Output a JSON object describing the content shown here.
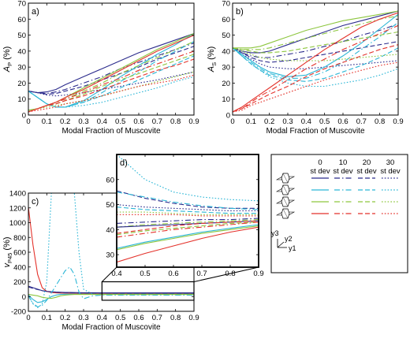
{
  "colors": {
    "navy": "#2b2b8c",
    "cyan": "#2bb6d6",
    "green": "#8dc63f",
    "red": "#e4322b"
  },
  "legend": {
    "headers": [
      {
        "a": "0",
        "b": "st dev"
      },
      {
        "a": "10",
        "b": "st dev"
      },
      {
        "a": "20",
        "b": "st dev"
      },
      {
        "a": "30",
        "b": "st dev"
      }
    ],
    "dashes": [
      "solid",
      "dashdot",
      "dash",
      "dot"
    ],
    "rows": [
      "navy",
      "cyan",
      "green",
      "red"
    ],
    "axes": {
      "y3": "y3",
      "y2": "y2",
      "y1": "y1"
    }
  },
  "chart_data": [
    {
      "id": "a",
      "type": "line",
      "panel_label": "a)",
      "ylabel": "Ap (%)",
      "ylabel_main": "A",
      "ylabel_sub": "P",
      "ylabel_unit": "(%)",
      "xlabel": "Modal Fraction of Muscovite",
      "xlim": [
        0,
        0.9
      ],
      "ylim": [
        0,
        70
      ],
      "xticks": [
        "0",
        "0.1",
        "0.2",
        "0.3",
        "0.4",
        "0.5",
        "0.6",
        "0.7",
        "0.8",
        "0.9"
      ],
      "yticks": [
        "0",
        "10",
        "20",
        "30",
        "40",
        "50",
        "60",
        "70"
      ],
      "x": [
        0,
        0.05,
        0.1,
        0.15,
        0.2,
        0.3,
        0.4,
        0.5,
        0.6,
        0.7,
        0.8,
        0.9
      ],
      "series": [
        {
          "color": "navy",
          "style": "solid",
          "values": [
            15,
            14,
            14.5,
            16,
            19,
            24,
            29,
            34,
            39,
            43,
            47,
            51
          ]
        },
        {
          "color": "navy",
          "style": "dashdot",
          "values": [
            15,
            14,
            13.5,
            14.5,
            16,
            20,
            24,
            29,
            33,
            37,
            41,
            45
          ]
        },
        {
          "color": "navy",
          "style": "dash",
          "values": [
            15,
            14,
            13,
            13.5,
            15,
            18,
            22,
            26,
            30,
            35,
            39,
            43
          ]
        },
        {
          "color": "navy",
          "style": "dot",
          "values": [
            15,
            14,
            12.5,
            12,
            12.5,
            14,
            16,
            18,
            20,
            22,
            24.5,
            27
          ]
        },
        {
          "color": "cyan",
          "style": "solid",
          "values": [
            15,
            11,
            7,
            5,
            5,
            9,
            16,
            24,
            31,
            38,
            44,
            51
          ]
        },
        {
          "color": "cyan",
          "style": "dashdot",
          "values": [
            15,
            11,
            7,
            5,
            5,
            8,
            14,
            21,
            27,
            34,
            40,
            46
          ]
        },
        {
          "color": "cyan",
          "style": "dash",
          "values": [
            15,
            11,
            7,
            5,
            5,
            8,
            12,
            17,
            22,
            27,
            32,
            37
          ]
        },
        {
          "color": "cyan",
          "style": "dot",
          "values": [
            15,
            11,
            7,
            5,
            5,
            6,
            8,
            11,
            14,
            17,
            21,
            24
          ]
        },
        {
          "color": "green",
          "style": "solid",
          "values": [
            3,
            4,
            6,
            8,
            11,
            17,
            23,
            29,
            35,
            41,
            46,
            51
          ]
        },
        {
          "color": "green",
          "style": "dashdot",
          "values": [
            3,
            4,
            6,
            8,
            10,
            15,
            20,
            26,
            31,
            36,
            41,
            46
          ]
        },
        {
          "color": "green",
          "style": "dash",
          "values": [
            3,
            4,
            6,
            7,
            9,
            13,
            18,
            22,
            26,
            30,
            34,
            38
          ]
        },
        {
          "color": "green",
          "style": "dot",
          "values": [
            3,
            4,
            5,
            6,
            7,
            9,
            12,
            15,
            18,
            21,
            24,
            27
          ]
        },
        {
          "color": "red",
          "style": "solid",
          "values": [
            2,
            4,
            6,
            8,
            11,
            16,
            22,
            28,
            34,
            40,
            45,
            50
          ]
        },
        {
          "color": "red",
          "style": "dashdot",
          "values": [
            2,
            4,
            6,
            8,
            10,
            14,
            19,
            23,
            28,
            32,
            36,
            40
          ]
        },
        {
          "color": "red",
          "style": "dash",
          "values": [
            2,
            4,
            6,
            7,
            9,
            12,
            16,
            20,
            24,
            28,
            31,
            35
          ]
        },
        {
          "color": "red",
          "style": "dot",
          "values": [
            2,
            3,
            4,
            5,
            7,
            9,
            12,
            15,
            18,
            20,
            22,
            25
          ]
        }
      ]
    },
    {
      "id": "b",
      "type": "line",
      "panel_label": "b)",
      "ylabel": "As (%)",
      "ylabel_main": "A",
      "ylabel_sub": "S",
      "ylabel_unit": "(%)",
      "xlabel": "Modal Fraction of Muscovite",
      "xlim": [
        0,
        0.9
      ],
      "ylim": [
        0,
        70
      ],
      "xticks": [
        "0",
        "0.1",
        "0.2",
        "0.3",
        "0.4",
        "0.5",
        "0.6",
        "0.7",
        "0.8",
        "0.9"
      ],
      "yticks": [
        "0",
        "10",
        "20",
        "30",
        "40",
        "50",
        "60",
        "70"
      ],
      "x": [
        0,
        0.05,
        0.1,
        0.15,
        0.2,
        0.3,
        0.4,
        0.5,
        0.6,
        0.7,
        0.8,
        0.9
      ],
      "series": [
        {
          "color": "navy",
          "style": "solid",
          "values": [
            42,
            40,
            39,
            39,
            40,
            44,
            48,
            52,
            56,
            59,
            62,
            65
          ]
        },
        {
          "color": "navy",
          "style": "dashdot",
          "values": [
            42,
            39,
            37,
            36,
            36,
            38,
            40,
            43,
            46,
            50,
            53,
            57
          ]
        },
        {
          "color": "navy",
          "style": "dash",
          "values": [
            42,
            39,
            36,
            34,
            33,
            34,
            36,
            38,
            40,
            42,
            44,
            46
          ]
        },
        {
          "color": "navy",
          "style": "dot",
          "values": [
            42,
            38,
            35,
            32,
            30,
            29,
            29,
            30,
            31,
            32,
            33,
            34
          ]
        },
        {
          "color": "cyan",
          "style": "solid",
          "values": [
            42,
            38,
            34,
            30,
            27,
            24,
            25,
            30,
            37,
            45,
            54,
            63
          ]
        },
        {
          "color": "cyan",
          "style": "dashdot",
          "values": [
            42,
            37,
            33,
            29,
            26,
            23,
            23,
            27,
            33,
            41,
            49,
            58
          ]
        },
        {
          "color": "cyan",
          "style": "dash",
          "values": [
            42,
            37,
            32,
            28,
            25,
            22,
            21,
            23,
            27,
            31,
            36,
            42
          ]
        },
        {
          "color": "cyan",
          "style": "dot",
          "values": [
            42,
            37,
            32,
            28,
            24,
            20,
            18,
            18,
            20,
            22,
            25,
            29
          ]
        },
        {
          "color": "green",
          "style": "solid",
          "values": [
            42,
            42,
            42,
            43,
            45,
            49,
            53,
            56,
            59,
            61,
            63,
            65
          ]
        },
        {
          "color": "green",
          "style": "dashdot",
          "values": [
            42,
            41,
            41,
            41,
            42,
            45,
            48,
            51,
            54,
            57,
            60,
            62
          ]
        },
        {
          "color": "green",
          "style": "dash",
          "values": [
            42,
            41,
            40,
            39,
            39,
            40,
            42,
            44,
            46,
            48,
            50,
            52
          ]
        },
        {
          "color": "green",
          "style": "dot",
          "values": [
            42,
            40,
            38,
            36,
            35,
            34,
            34,
            34,
            35,
            36,
            37,
            38
          ]
        },
        {
          "color": "red",
          "style": "solid",
          "values": [
            2,
            5,
            9,
            13,
            17,
            25,
            33,
            41,
            48,
            55,
            60,
            64
          ]
        },
        {
          "color": "red",
          "style": "dashdot",
          "values": [
            2,
            4,
            8,
            12,
            15,
            22,
            29,
            35,
            41,
            46,
            51,
            56
          ]
        },
        {
          "color": "red",
          "style": "dash",
          "values": [
            2,
            4,
            7,
            10,
            13,
            18,
            24,
            29,
            33,
            37,
            41,
            44
          ]
        },
        {
          "color": "red",
          "style": "dot",
          "values": [
            2,
            3,
            6,
            8,
            10,
            14,
            18,
            22,
            25,
            28,
            31,
            33
          ]
        }
      ]
    },
    {
      "id": "c",
      "type": "line",
      "panel_label": "c)",
      "ylabel": "vP45 (%)",
      "ylabel_main": "v",
      "ylabel_sub": "P45",
      "ylabel_unit": "(%)",
      "xlabel": "Modal Fraction of Muscovite",
      "xlim": [
        0,
        0.9
      ],
      "ylim": [
        -200,
        1400
      ],
      "xticks": [
        "0",
        "0.1",
        "0.2",
        "0.3",
        "0.4",
        "0.5",
        "0.6",
        "0.7",
        "0.8",
        "0.9"
      ],
      "yticks": [
        "-200",
        "0",
        "200",
        "400",
        "600",
        "800",
        "1000",
        "1200",
        "1400"
      ],
      "x": [
        0,
        0.025,
        0.05,
        0.075,
        0.1,
        0.125,
        0.15,
        0.175,
        0.2,
        0.225,
        0.25,
        0.275,
        0.3,
        0.35,
        0.4,
        0.5,
        0.6,
        0.7,
        0.8,
        0.9
      ],
      "series": [
        {
          "color": "red",
          "style": "solid",
          "values": [
            1210,
            700,
            300,
            120,
            70,
            55,
            50,
            48,
            46,
            45,
            44,
            43,
            42,
            41,
            40,
            40,
            40,
            40,
            40,
            40
          ]
        },
        {
          "color": "navy",
          "style": "solid",
          "values": [
            140,
            120,
            100,
            80,
            70,
            65,
            60,
            58,
            56,
            55,
            54,
            53,
            52,
            52,
            51,
            51,
            50,
            50,
            50,
            50
          ]
        },
        {
          "color": "navy",
          "style": "dash",
          "values": [
            130,
            110,
            95,
            80,
            70,
            62,
            58,
            55,
            53,
            52,
            51,
            50,
            50,
            49,
            49,
            48,
            48,
            48,
            48,
            48
          ]
        },
        {
          "color": "cyan",
          "style": "dot",
          "values": [
            10,
            -100,
            -150,
            -100,
            200,
            1400,
            1400,
            1400,
            1400,
            1400,
            1400,
            600,
            100,
            30,
            25,
            25,
            25,
            25,
            25,
            25
          ]
        },
        {
          "color": "cyan",
          "style": "dashdot",
          "values": [
            10,
            -90,
            -140,
            -120,
            -50,
            50,
            150,
            250,
            350,
            400,
            300,
            60,
            -30,
            10,
            20,
            20,
            20,
            20,
            20,
            20
          ]
        },
        {
          "color": "cyan",
          "style": "solid",
          "values": [
            20,
            -40,
            -80,
            -70,
            -40,
            0,
            20,
            30,
            32,
            33,
            33,
            33,
            33,
            33,
            33,
            33,
            33,
            33,
            33,
            33
          ]
        },
        {
          "color": "green",
          "style": "solid",
          "values": [
            30,
            20,
            10,
            -10,
            -20,
            -25,
            -10,
            10,
            20,
            25,
            28,
            28,
            28,
            28,
            28,
            28,
            28,
            28,
            28,
            28
          ]
        }
      ]
    },
    {
      "id": "d",
      "type": "line",
      "panel_label": "d)",
      "xlim": [
        0.4,
        0.9
      ],
      "ylim": [
        25,
        70
      ],
      "xticks": [
        "0.4",
        "0.5",
        "0.6",
        "0.7",
        "0.8",
        "0.9"
      ],
      "yticks": [
        "30",
        "40",
        "50",
        "60"
      ],
      "x": [
        0.4,
        0.5,
        0.6,
        0.7,
        0.8,
        0.9
      ],
      "series": [
        {
          "color": "cyan",
          "style": "dot",
          "values": [
            70,
            60,
            55,
            53,
            52,
            51.5
          ]
        },
        {
          "color": "navy",
          "style": "dash",
          "values": [
            55.5,
            52.5,
            50.5,
            49,
            48.5,
            48.5
          ]
        },
        {
          "color": "cyan",
          "style": "dashdot",
          "values": [
            55,
            53,
            51,
            49.5,
            48.5,
            48
          ]
        },
        {
          "color": "navy",
          "style": "dot",
          "values": [
            50,
            49,
            48.5,
            48,
            47.5,
            47.5
          ]
        },
        {
          "color": "cyan",
          "style": "dash",
          "values": [
            49,
            48,
            47.5,
            47,
            46.5,
            46.5
          ]
        },
        {
          "color": "green",
          "style": "dot",
          "values": [
            47,
            47,
            46.5,
            46,
            46,
            46
          ]
        },
        {
          "color": "red",
          "style": "dot",
          "values": [
            46,
            46,
            46,
            45.5,
            45.5,
            45.5
          ]
        },
        {
          "color": "navy",
          "style": "dashdot",
          "values": [
            42.5,
            43,
            43.5,
            44,
            44,
            44.5
          ]
        },
        {
          "color": "green",
          "style": "dashdot",
          "values": [
            41,
            42,
            42.5,
            43,
            43.5,
            44
          ]
        },
        {
          "color": "navy",
          "style": "solid",
          "values": [
            41,
            41.5,
            42,
            42.5,
            43,
            43.5
          ]
        },
        {
          "color": "red",
          "style": "dash",
          "values": [
            38.5,
            40,
            41.5,
            42.5,
            43,
            43.5
          ]
        },
        {
          "color": "green",
          "style": "dash",
          "values": [
            38,
            39.5,
            40.5,
            41.5,
            42.5,
            43
          ]
        },
        {
          "color": "red",
          "style": "dashdot",
          "values": [
            37,
            38.5,
            40,
            41,
            42,
            43
          ]
        },
        {
          "color": "cyan",
          "style": "solid",
          "values": [
            32.5,
            35,
            37,
            39,
            40.5,
            42
          ]
        },
        {
          "color": "green",
          "style": "solid",
          "values": [
            32,
            34.5,
            36.5,
            38.5,
            40,
            41.5
          ]
        },
        {
          "color": "red",
          "style": "solid",
          "values": [
            27,
            30.5,
            33.5,
            36.5,
            39,
            41
          ]
        }
      ]
    }
  ]
}
